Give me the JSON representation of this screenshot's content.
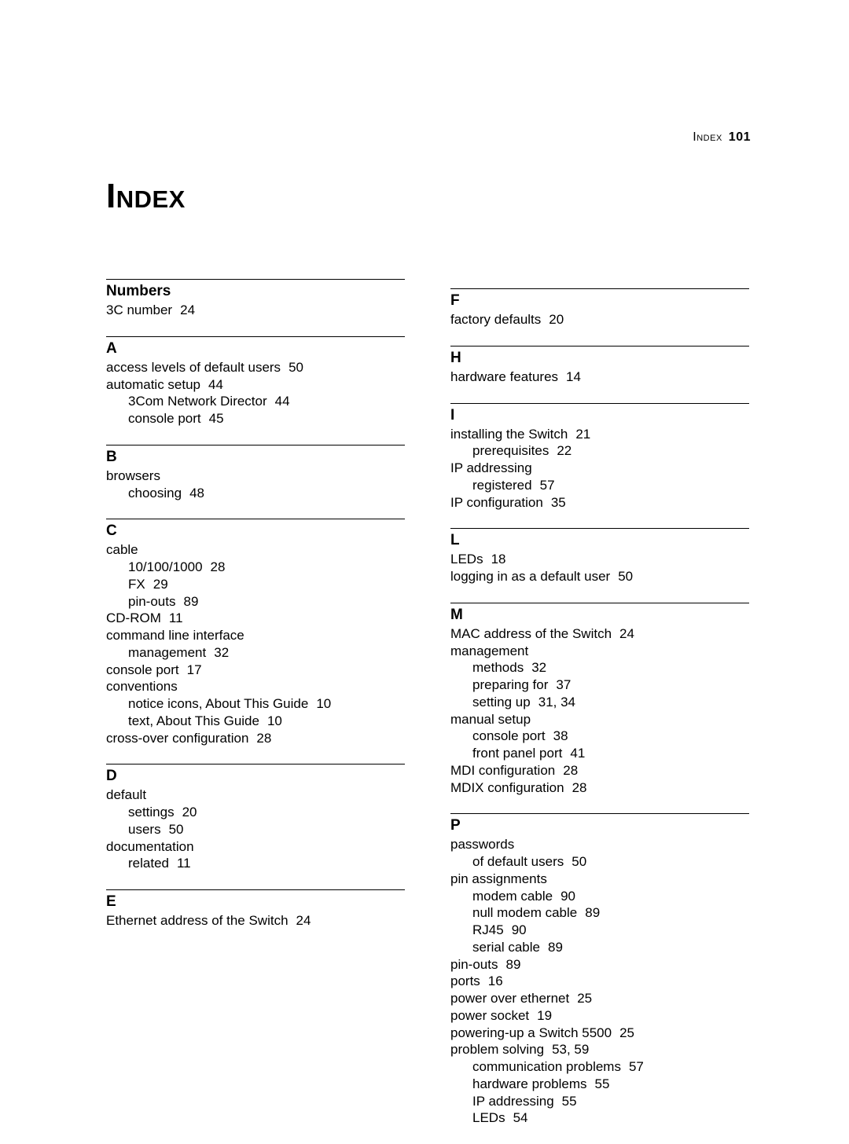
{
  "header": {
    "label": "Index",
    "page": "101"
  },
  "title": "Index",
  "left": [
    {
      "head": "Numbers",
      "lines": [
        {
          "t": "3C number",
          "p": "24",
          "lvl": 1
        }
      ]
    },
    {
      "head": "A",
      "lines": [
        {
          "t": "access levels of default users",
          "p": "50",
          "lvl": 1
        },
        {
          "t": "automatic setup",
          "p": "44",
          "lvl": 1
        },
        {
          "t": "3Com Network Director",
          "p": "44",
          "lvl": 2
        },
        {
          "t": "console port",
          "p": "45",
          "lvl": 2
        }
      ]
    },
    {
      "head": "B",
      "lines": [
        {
          "t": "browsers",
          "p": "",
          "lvl": 1
        },
        {
          "t": "choosing",
          "p": "48",
          "lvl": 2
        }
      ]
    },
    {
      "head": "C",
      "lines": [
        {
          "t": "cable",
          "p": "",
          "lvl": 1
        },
        {
          "t": "10/100/1000",
          "p": "28",
          "lvl": 2
        },
        {
          "t": "FX",
          "p": "29",
          "lvl": 2
        },
        {
          "t": "pin-outs",
          "p": "89",
          "lvl": 2
        },
        {
          "t": "CD-ROM",
          "p": "11",
          "lvl": 1
        },
        {
          "t": "command line interface",
          "p": "",
          "lvl": 1
        },
        {
          "t": "management",
          "p": "32",
          "lvl": 2
        },
        {
          "t": "console port",
          "p": "17",
          "lvl": 1
        },
        {
          "t": "conventions",
          "p": "",
          "lvl": 1
        },
        {
          "t": "notice icons, About This Guide",
          "p": "10",
          "lvl": 2
        },
        {
          "t": "text, About This Guide",
          "p": "10",
          "lvl": 2
        },
        {
          "t": "cross-over configuration",
          "p": "28",
          "lvl": 1
        }
      ]
    },
    {
      "head": "D",
      "lines": [
        {
          "t": "default",
          "p": "",
          "lvl": 1
        },
        {
          "t": "settings",
          "p": "20",
          "lvl": 2
        },
        {
          "t": "users",
          "p": "50",
          "lvl": 2
        },
        {
          "t": "documentation",
          "p": "",
          "lvl": 1
        },
        {
          "t": "related",
          "p": "11",
          "lvl": 2
        }
      ]
    },
    {
      "head": "E",
      "lines": [
        {
          "t": "Ethernet address of the Switch",
          "p": "24",
          "lvl": 1
        }
      ]
    }
  ],
  "right": [
    {
      "head": "F",
      "lines": [
        {
          "t": "factory defaults",
          "p": "20",
          "lvl": 1
        }
      ]
    },
    {
      "head": "H",
      "lines": [
        {
          "t": "hardware features",
          "p": "14",
          "lvl": 1
        }
      ]
    },
    {
      "head": "I",
      "lines": [
        {
          "t": "installing the Switch",
          "p": "21",
          "lvl": 1
        },
        {
          "t": "prerequisites",
          "p": "22",
          "lvl": 2
        },
        {
          "t": "IP addressing",
          "p": "",
          "lvl": 1
        },
        {
          "t": "registered",
          "p": "57",
          "lvl": 2
        },
        {
          "t": "IP configuration",
          "p": "35",
          "lvl": 1
        }
      ]
    },
    {
      "head": "L",
      "lines": [
        {
          "t": "LEDs",
          "p": "18",
          "lvl": 1
        },
        {
          "t": "logging in as a default user",
          "p": "50",
          "lvl": 1
        }
      ]
    },
    {
      "head": "M",
      "lines": [
        {
          "t": "MAC address of the Switch",
          "p": "24",
          "lvl": 1
        },
        {
          "t": "management",
          "p": "",
          "lvl": 1
        },
        {
          "t": "methods",
          "p": "32",
          "lvl": 2
        },
        {
          "t": "preparing for",
          "p": "37",
          "lvl": 2
        },
        {
          "t": "setting up",
          "p": "31, 34",
          "lvl": 2
        },
        {
          "t": "manual setup",
          "p": "",
          "lvl": 1
        },
        {
          "t": "console port",
          "p": "38",
          "lvl": 2
        },
        {
          "t": "front panel port",
          "p": "41",
          "lvl": 2
        },
        {
          "t": "MDI configuration",
          "p": "28",
          "lvl": 1
        },
        {
          "t": "MDIX configuration",
          "p": "28",
          "lvl": 1
        }
      ]
    },
    {
      "head": "P",
      "lines": [
        {
          "t": "passwords",
          "p": "",
          "lvl": 1
        },
        {
          "t": "of default users",
          "p": "50",
          "lvl": 2
        },
        {
          "t": "pin assignments",
          "p": "",
          "lvl": 1
        },
        {
          "t": "modem cable",
          "p": "90",
          "lvl": 2
        },
        {
          "t": "null modem cable",
          "p": "89",
          "lvl": 2
        },
        {
          "t": "RJ45",
          "p": "90",
          "lvl": 2
        },
        {
          "t": "serial cable",
          "p": "89",
          "lvl": 2
        },
        {
          "t": "pin-outs",
          "p": "89",
          "lvl": 1
        },
        {
          "t": "ports",
          "p": "16",
          "lvl": 1
        },
        {
          "t": "power over ethernet",
          "p": "25",
          "lvl": 1
        },
        {
          "t": "power socket",
          "p": "19",
          "lvl": 1
        },
        {
          "t": "powering-up a Switch 5500",
          "p": "25",
          "lvl": 1
        },
        {
          "t": "problem solving",
          "p": "53, 59",
          "lvl": 1
        },
        {
          "t": "communication problems",
          "p": "57",
          "lvl": 2
        },
        {
          "t": "hardware problems",
          "p": "55",
          "lvl": 2
        },
        {
          "t": "IP addressing",
          "p": "55",
          "lvl": 2
        },
        {
          "t": "LEDs",
          "p": "54",
          "lvl": 2
        }
      ]
    }
  ]
}
